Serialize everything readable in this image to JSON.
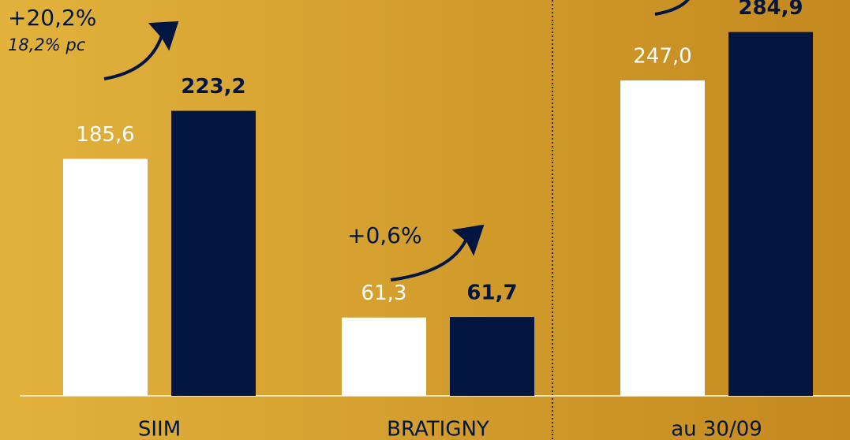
{
  "chart_data": {
    "type": "bar",
    "categories": [
      "SIIM",
      "BRATIGNY",
      "au 30/09"
    ],
    "series": [
      {
        "color": "#ffffff",
        "values": [
          185.6,
          61.3,
          247.0
        ],
        "value_labels": [
          "185,6",
          "61,3",
          "247,0"
        ]
      },
      {
        "color": "#001641",
        "values": [
          223.2,
          61.7,
          284.9
        ],
        "value_labels": [
          "223,2",
          "61,7",
          "284,9"
        ]
      }
    ],
    "ylim": [
      0,
      310
    ],
    "annotations": [
      "+20,2%",
      "18,2% pc",
      "+0,6%"
    ]
  }
}
